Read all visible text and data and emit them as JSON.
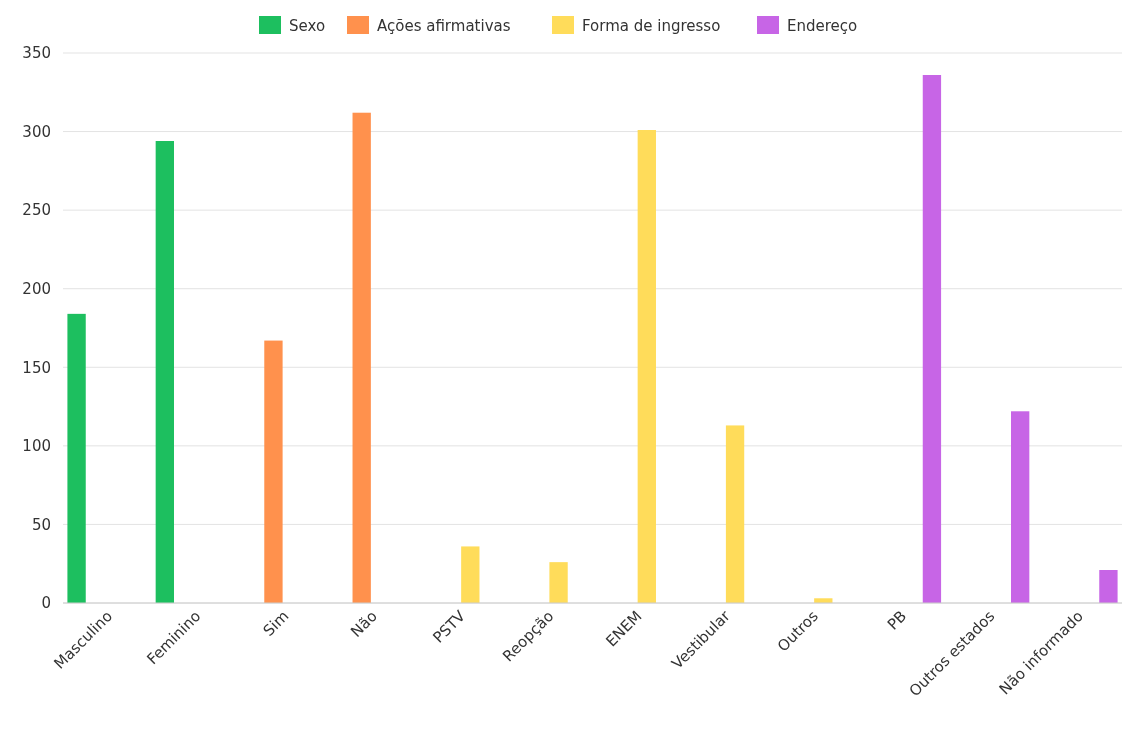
{
  "chart_data": {
    "type": "bar",
    "categories": [
      "Masculino",
      "Feminino",
      "Sim",
      "Não",
      "PSTV",
      "Reopção",
      "ENEM",
      "Vestibular",
      "Outros",
      "PB",
      "Outros estados",
      "Não informado"
    ],
    "series": [
      {
        "name": "Sexo",
        "color": "#1dbf5f",
        "values": [
          184,
          294,
          null,
          null,
          null,
          null,
          null,
          null,
          null,
          null,
          null,
          null
        ]
      },
      {
        "name": "Ações afirmativas",
        "color": "#ff914d",
        "values": [
          null,
          null,
          167,
          312,
          null,
          null,
          null,
          null,
          null,
          null,
          null,
          null
        ]
      },
      {
        "name": "Forma de ingresso",
        "color": "#ffdc5a",
        "values": [
          null,
          null,
          null,
          null,
          36,
          26,
          301,
          113,
          3,
          null,
          null,
          null
        ]
      },
      {
        "name": "Endereço",
        "color": "#c765e6",
        "values": [
          null,
          null,
          null,
          null,
          null,
          null,
          null,
          null,
          null,
          336,
          122,
          21
        ]
      }
    ],
    "ylim": [
      0,
      350
    ],
    "yticks": [
      0,
      50,
      100,
      150,
      200,
      250,
      300,
      350
    ],
    "grid": "y",
    "legend": "top"
  }
}
